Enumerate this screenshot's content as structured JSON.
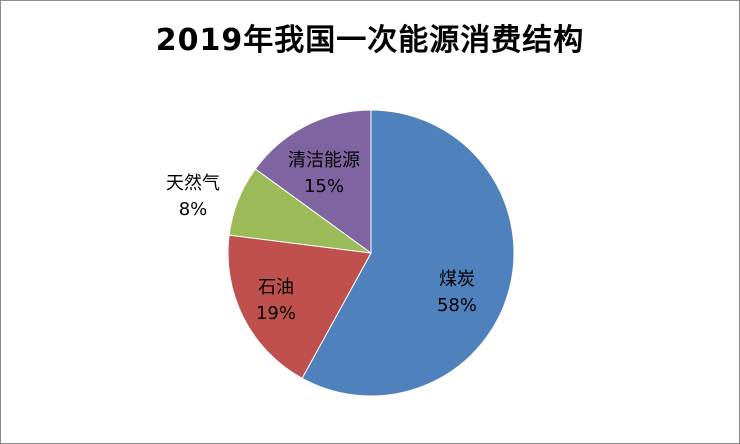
{
  "chart_data": {
    "type": "pie",
    "title": "2019年我国一次能源消费结构",
    "slices": [
      {
        "name": "煤炭",
        "value": 58,
        "label": "58%",
        "color": "#4f81bd"
      },
      {
        "name": "石油",
        "value": 19,
        "label": "19%",
        "color": "#c0504d"
      },
      {
        "name": "天然气",
        "value": 8,
        "label": "8%",
        "color": "#9bbb59"
      },
      {
        "name": "清洁能源",
        "value": 15,
        "label": "15%",
        "color": "#8064a2"
      }
    ],
    "start": "12 o'clock",
    "direction": "clockwise"
  }
}
